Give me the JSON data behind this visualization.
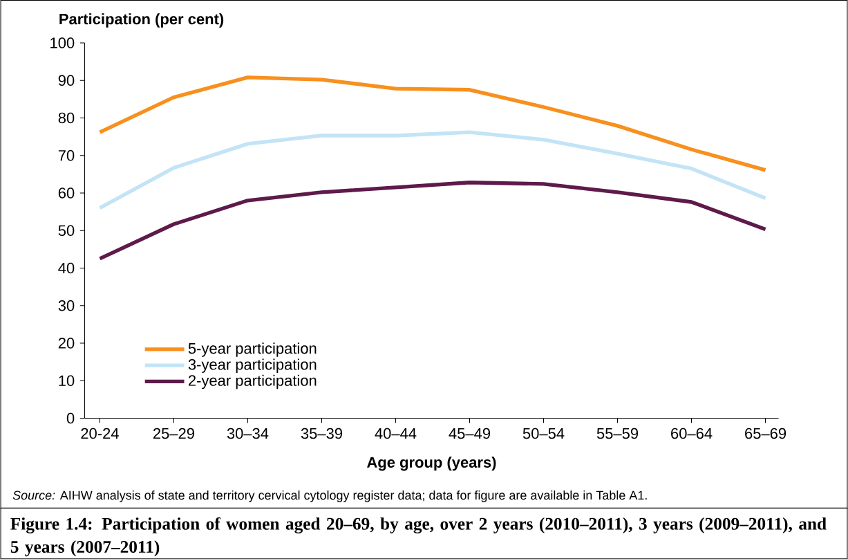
{
  "chart_data": {
    "type": "line",
    "title": "Figure 1.4: Participation of women aged 20–69, by age, over 2 years (2010–2011), 3 years (2009–2011), and 5 years (2007–2011)",
    "ylabel": "Participation (per cent)",
    "xlabel": "Age group (years)",
    "annotations": [
      "*Source:* AIHW analysis of state and territory cervical cytology register data; data for figure are available in Table A1."
    ],
    "categories": [
      "20-24",
      "25–29",
      "30–34",
      "35–39",
      "40–44",
      "45–49",
      "50–54",
      "55–59",
      "60–64",
      "65–69"
    ],
    "series": [
      {
        "name": "5-year participation",
        "color": "#f7901e",
        "values": [
          76.2,
          85.5,
          90.8,
          90.2,
          87.8,
          87.5,
          82.9,
          77.9,
          71.6,
          66.1
        ]
      },
      {
        "name": "3-year participation",
        "color": "#c3e4f6",
        "values": [
          56.0,
          66.7,
          73.1,
          75.3,
          75.3,
          76.2,
          74.2,
          70.5,
          66.5,
          58.6
        ]
      },
      {
        "name": "2-year participation",
        "color": "#5e1a4a",
        "values": [
          42.5,
          51.7,
          58.0,
          60.2,
          61.5,
          62.8,
          62.4,
          60.2,
          57.6,
          50.3
        ]
      }
    ],
    "ylim": [
      0,
      100
    ],
    "yticks": [
      0,
      10,
      20,
      30,
      40,
      50,
      60,
      70,
      80,
      90,
      100
    ],
    "grid": false,
    "legend": "bottom left",
    "marker": "none",
    "line_style": "solid"
  }
}
